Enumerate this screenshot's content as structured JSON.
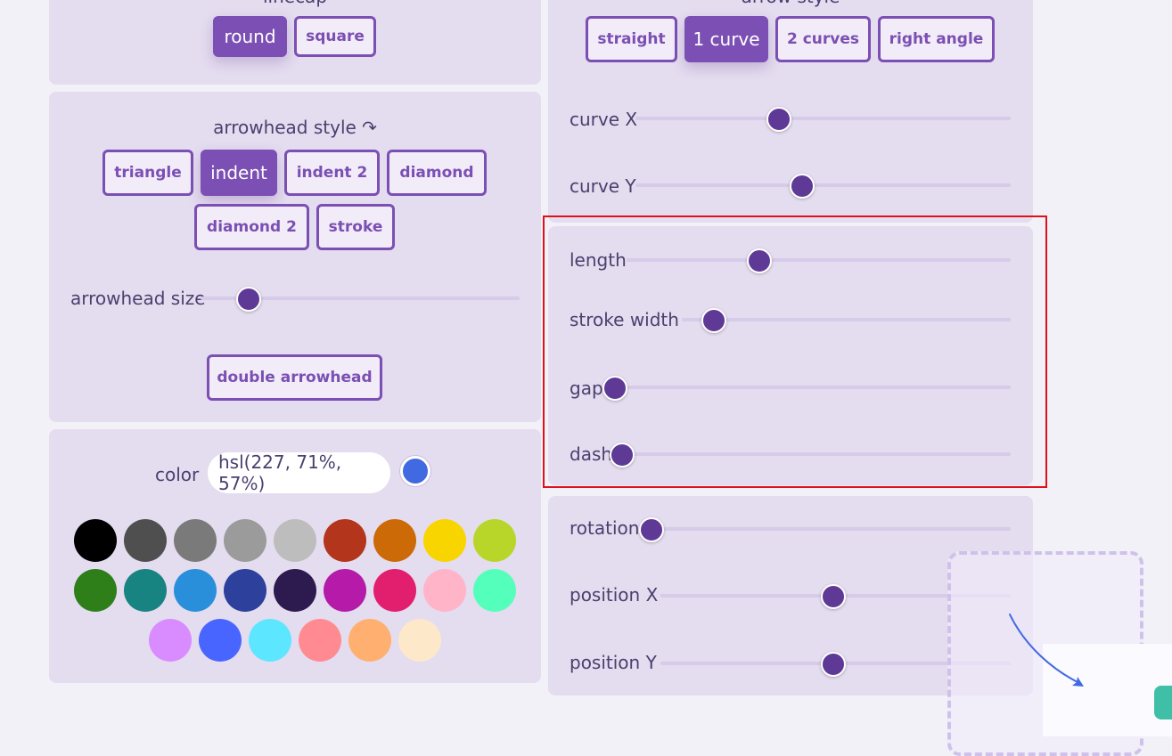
{
  "linecap": {
    "heading": "linecap",
    "options": [
      {
        "label": "round",
        "active": true
      },
      {
        "label": "square",
        "active": false
      }
    ]
  },
  "arrowhead": {
    "heading": "arrowhead style ↷",
    "options": [
      {
        "label": "triangle",
        "active": false
      },
      {
        "label": "indent",
        "active": true
      },
      {
        "label": "indent 2",
        "active": false
      },
      {
        "label": "diamond",
        "active": false
      },
      {
        "label": "diamond 2",
        "active": false
      },
      {
        "label": "stroke",
        "active": false
      }
    ],
    "size": {
      "label": "arrowhead size",
      "value": 0.12
    },
    "double_button": "double arrowhead"
  },
  "color": {
    "label": "color",
    "value": "hsl(227, 71%, 57%)",
    "current": "#4169e1",
    "swatches": [
      "#000000",
      "#4f4f4f",
      "#7a7a7a",
      "#9b9b9b",
      "#bdbdbd",
      "#b3351c",
      "#cc6a07",
      "#f9d500",
      "#b8d629",
      "#2e7e1a",
      "#188481",
      "#2a8fdb",
      "#2c409c",
      "#2d1a4f",
      "#b51aa9",
      "#e21e6e",
      "#ffb4c8",
      "#54ffbc",
      "#d98cff",
      "#4866ff",
      "#5de6ff",
      "#ff8a92",
      "#ffb070",
      "#fde9c9"
    ]
  },
  "arrow_style": {
    "heading": "arrow style",
    "options": [
      {
        "label": "straight",
        "active": false
      },
      {
        "label": "1 curve",
        "active": true
      },
      {
        "label": "2 curves",
        "active": false
      },
      {
        "label": "right angle",
        "active": false
      }
    ],
    "curve_x": {
      "label": "curve X",
      "value": 0.38
    },
    "curve_y": {
      "label": "curve Y",
      "value": 0.44
    }
  },
  "line": {
    "length": {
      "label": "length",
      "value": 0.35
    },
    "stroke_width": {
      "label": "stroke width",
      "value": 0.12
    },
    "gap": {
      "label": "gap",
      "value": 0.0
    },
    "dash": {
      "label": "dash",
      "value": 0.0
    }
  },
  "position": {
    "rotation": {
      "label": "rotation",
      "value": 0.0
    },
    "position_x": {
      "label": "position X",
      "value": 0.5
    },
    "position_y": {
      "label": "position Y",
      "value": 0.5
    }
  }
}
